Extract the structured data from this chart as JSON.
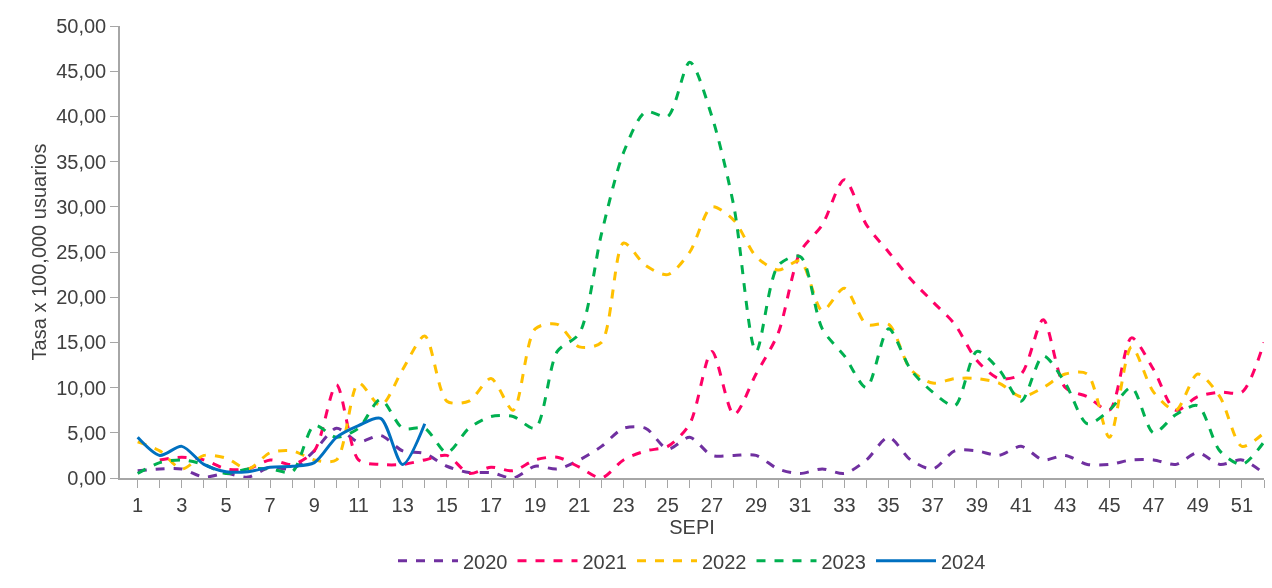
{
  "chart_data": {
    "type": "line",
    "xlabel": "SEPI",
    "ylabel": "Tasa x 100,000 usuarios",
    "grid": false,
    "legend": "bottom",
    "marker": "none",
    "xlim": [
      0.2,
      52
    ],
    "xticks": [
      1,
      {
        "value": 2,
        "label": null
      },
      3,
      {
        "value": 4,
        "label": null
      },
      5,
      {
        "value": 6,
        "label": null
      },
      7,
      {
        "value": 8,
        "label": null
      },
      9,
      {
        "value": 10,
        "label": null
      },
      11,
      {
        "value": 12,
        "label": null
      },
      13,
      {
        "value": 14,
        "label": null
      },
      15,
      {
        "value": 16,
        "label": null
      },
      17,
      {
        "value": 18,
        "label": null
      },
      19,
      {
        "value": 20,
        "label": null
      },
      21,
      {
        "value": 22,
        "label": null
      },
      23,
      {
        "value": 24,
        "label": null
      },
      25,
      {
        "value": 26,
        "label": null
      },
      27,
      {
        "value": 28,
        "label": null
      },
      29,
      {
        "value": 30,
        "label": null
      },
      31,
      {
        "value": 32,
        "label": null
      },
      33,
      {
        "value": 34,
        "label": null
      },
      35,
      {
        "value": 36,
        "label": null
      },
      37,
      {
        "value": 38,
        "label": null
      },
      39,
      {
        "value": 40,
        "label": null
      },
      41,
      {
        "value": 42,
        "label": null
      },
      43,
      {
        "value": 44,
        "label": null
      },
      45,
      {
        "value": 46,
        "label": null
      },
      47,
      {
        "value": 48,
        "label": null
      },
      49,
      {
        "value": 50,
        "label": null
      },
      51,
      {
        "value": 52,
        "label": null
      }
    ],
    "ylim": [
      0,
      50
    ],
    "yticks": [
      {
        "value": 0,
        "label": "0,00"
      },
      {
        "value": 5,
        "label": "5,00"
      },
      {
        "value": 10,
        "label": "10,00"
      },
      {
        "value": 15,
        "label": "15,00"
      },
      {
        "value": 20,
        "label": "20,00"
      },
      {
        "value": 25,
        "label": "25,00"
      },
      {
        "value": 30,
        "label": "30,00"
      },
      {
        "value": 35,
        "label": "35,00"
      },
      {
        "value": 40,
        "label": "40,00"
      },
      {
        "value": 45,
        "label": "45,00"
      },
      {
        "value": 50,
        "label": "50,00"
      }
    ],
    "x": [
      1,
      2,
      3,
      4,
      5,
      6,
      7,
      8,
      9,
      10,
      11,
      12,
      13,
      14,
      15,
      16,
      17,
      18,
      19,
      20,
      21,
      22,
      23,
      24,
      25,
      26,
      27,
      28,
      29,
      30,
      31,
      32,
      33,
      34,
      35,
      36,
      37,
      38,
      39,
      40,
      41,
      42,
      43,
      44,
      45,
      46,
      47,
      48,
      49,
      50,
      51,
      52
    ],
    "series": [
      {
        "name": "2020",
        "color": "#7030a0",
        "line_style": "dashed",
        "values": [
          0.8,
          1.0,
          1.0,
          0.1,
          0.5,
          0.1,
          1.2,
          1.0,
          3.0,
          5.5,
          4.0,
          4.7,
          3.0,
          2.7,
          1.3,
          0.6,
          0.6,
          0.0,
          1.3,
          1.0,
          2.0,
          3.5,
          5.5,
          5.5,
          3.2,
          4.5,
          2.5,
          2.5,
          2.5,
          1.0,
          0.5,
          1.0,
          0.5,
          2.0,
          4.5,
          2.0,
          1.0,
          3.0,
          3.0,
          2.5,
          3.5,
          2.0,
          2.5,
          1.5,
          1.5,
          2.0,
          2.0,
          1.5,
          2.8,
          1.5,
          2.0,
          0.5
        ]
      },
      {
        "name": "2021",
        "color": "#ff0066",
        "line_style": "dashed",
        "values": [
          null,
          2.0,
          2.3,
          2.0,
          1.0,
          1.0,
          2.0,
          1.5,
          3.0,
          10.3,
          2.0,
          1.5,
          1.5,
          2.0,
          2.5,
          0.5,
          1.2,
          0.8,
          2.0,
          2.3,
          1.2,
          0.0,
          2.0,
          3.0,
          3.5,
          6.0,
          14.0,
          7.0,
          11.5,
          16.0,
          25.0,
          28.0,
          33.0,
          28.0,
          25.0,
          22.0,
          19.5,
          17.0,
          13.0,
          11.0,
          11.5,
          17.5,
          10.0,
          9.0,
          7.5,
          15.5,
          12.0,
          7.5,
          9.0,
          9.5,
          9.5,
          15.0
        ]
      },
      {
        "name": "2022",
        "color": "#ffc000",
        "line_style": "dashed",
        "values": [
          4.0,
          3.0,
          1.0,
          2.5,
          2.2,
          1.0,
          2.8,
          3.0,
          2.0,
          2.0,
          10.5,
          8.0,
          12.0,
          15.7,
          8.5,
          8.5,
          11.0,
          7.5,
          16.5,
          17.0,
          14.5,
          15.0,
          26.0,
          23.5,
          22.5,
          25.0,
          30.0,
          28.5,
          24.5,
          23.0,
          24.0,
          18.5,
          21.0,
          17.0,
          17.0,
          12.0,
          10.5,
          11.0,
          11.0,
          10.5,
          9.0,
          10.0,
          11.5,
          11.5,
          4.5,
          14.5,
          9.5,
          7.5,
          11.5,
          9.0,
          3.5,
          5.0
        ]
      },
      {
        "name": "2023",
        "color": "#00b050",
        "line_style": "dashed",
        "values": [
          0.5,
          1.7,
          2.0,
          1.5,
          0.5,
          1.0,
          1.0,
          0.7,
          5.8,
          4.5,
          5.5,
          8.7,
          5.5,
          5.5,
          2.8,
          5.5,
          6.8,
          6.8,
          5.5,
          14.0,
          16.0,
          27.0,
          36.0,
          40.5,
          40.0,
          46.0,
          40.0,
          30.0,
          14.0,
          23.5,
          24.5,
          16.5,
          13.5,
          10.0,
          16.5,
          12.0,
          9.5,
          8.0,
          14.0,
          12.0,
          8.5,
          13.5,
          10.5,
          6.0,
          7.5,
          10.0,
          5.0,
          7.0,
          8.0,
          3.0,
          1.5,
          4.0
        ]
      },
      {
        "name": "2024",
        "color": "#0070c0",
        "line_style": "solid",
        "values": [
          4.5,
          2.5,
          3.5,
          1.5,
          0.7,
          0.7,
          1.2,
          1.3,
          1.7,
          4.5,
          5.8,
          6.6,
          1.5,
          6.0,
          null,
          null,
          null,
          null,
          null,
          null,
          null,
          null,
          null,
          null,
          null,
          null,
          null,
          null,
          null,
          null,
          null,
          null,
          null,
          null,
          null,
          null,
          null,
          null,
          null,
          null,
          null,
          null,
          null,
          null,
          null,
          null,
          null,
          null,
          null,
          null,
          null,
          null
        ]
      }
    ]
  }
}
